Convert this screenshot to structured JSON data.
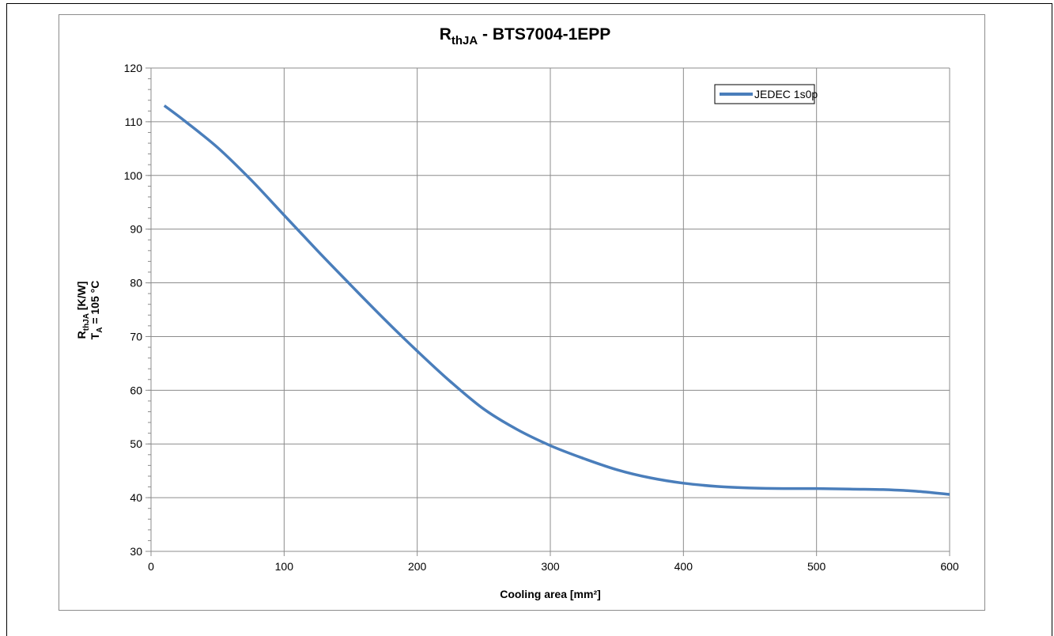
{
  "chart_data": {
    "type": "line",
    "title": "RthJA - BTS7004-1EPP",
    "title_main": "R",
    "title_sub": "thJA",
    "title_rest": " - BTS7004-1EPP",
    "xlabel": "Cooling area [mm²]",
    "ylabel_line1_main": "R",
    "ylabel_line1_sub": "thJA",
    "ylabel_line1_rest": " [K/W]",
    "ylabel_line2_main": "T",
    "ylabel_line2_sub": "A",
    "ylabel_line2_rest": " = 105 °C",
    "xlim": [
      0,
      600
    ],
    "ylim": [
      30,
      120
    ],
    "xticks": [
      0,
      100,
      200,
      300,
      400,
      500,
      600
    ],
    "yticks": [
      30,
      40,
      50,
      60,
      70,
      80,
      90,
      100,
      110,
      120
    ],
    "grid": true,
    "legend_position": "top-right",
    "series": [
      {
        "name": "JEDEC 1s0p",
        "color": "#4a7ebb",
        "x": [
          10,
          25,
          50,
          75,
          100,
          125,
          150,
          175,
          200,
          225,
          250,
          275,
          300,
          325,
          350,
          375,
          400,
          425,
          450,
          475,
          500,
          525,
          550,
          575,
          600
        ],
        "y": [
          113,
          110.2,
          105.2,
          99.2,
          92.6,
          86.0,
          79.6,
          73.3,
          67.3,
          61.6,
          56.5,
          52.7,
          49.7,
          47.3,
          45.2,
          43.7,
          42.7,
          42.1,
          41.8,
          41.7,
          41.7,
          41.6,
          41.5,
          41.2,
          40.6
        ]
      }
    ]
  }
}
